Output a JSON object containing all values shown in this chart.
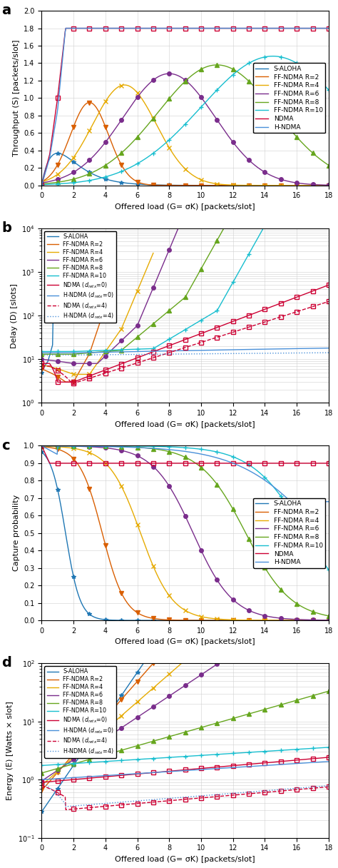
{
  "colors": {
    "s_aloha": "#1f77b4",
    "ff_r2": "#d95f02",
    "ff_r4": "#e6ab02",
    "ff_r6": "#7a2d8c",
    "ff_r8": "#66a61e",
    "ff_r10": "#17becf",
    "ndma": "#cc0033",
    "h_ndma": "#4a90d9"
  },
  "xlabel": "Offered load (G= σK) [packets/slot]",
  "xlim": [
    0,
    18
  ],
  "xticks": [
    0,
    2,
    4,
    6,
    8,
    10,
    12,
    14,
    16,
    18
  ],
  "panel_a": {
    "title": "a",
    "ylabel": "Throughput (S) [packets/slot]",
    "ylim": [
      0,
      2.0
    ],
    "yticks": [
      0,
      0.2,
      0.4,
      0.6,
      0.8,
      1.0,
      1.2,
      1.4,
      1.6,
      1.8,
      2.0
    ]
  },
  "panel_b": {
    "title": "b",
    "ylabel": "Delay (D) [slots]",
    "ylim": [
      1,
      10000
    ]
  },
  "panel_c": {
    "title": "c",
    "ylabel": "Capture probability",
    "ylim": [
      0,
      1.0
    ],
    "yticks": [
      0.0,
      0.1,
      0.2,
      0.3,
      0.4,
      0.5,
      0.6,
      0.7,
      0.8,
      0.9,
      1.0
    ]
  },
  "panel_d": {
    "title": "d",
    "ylabel": "Energy (E) [Watts × slot]",
    "ylim": [
      0.1,
      100
    ]
  }
}
